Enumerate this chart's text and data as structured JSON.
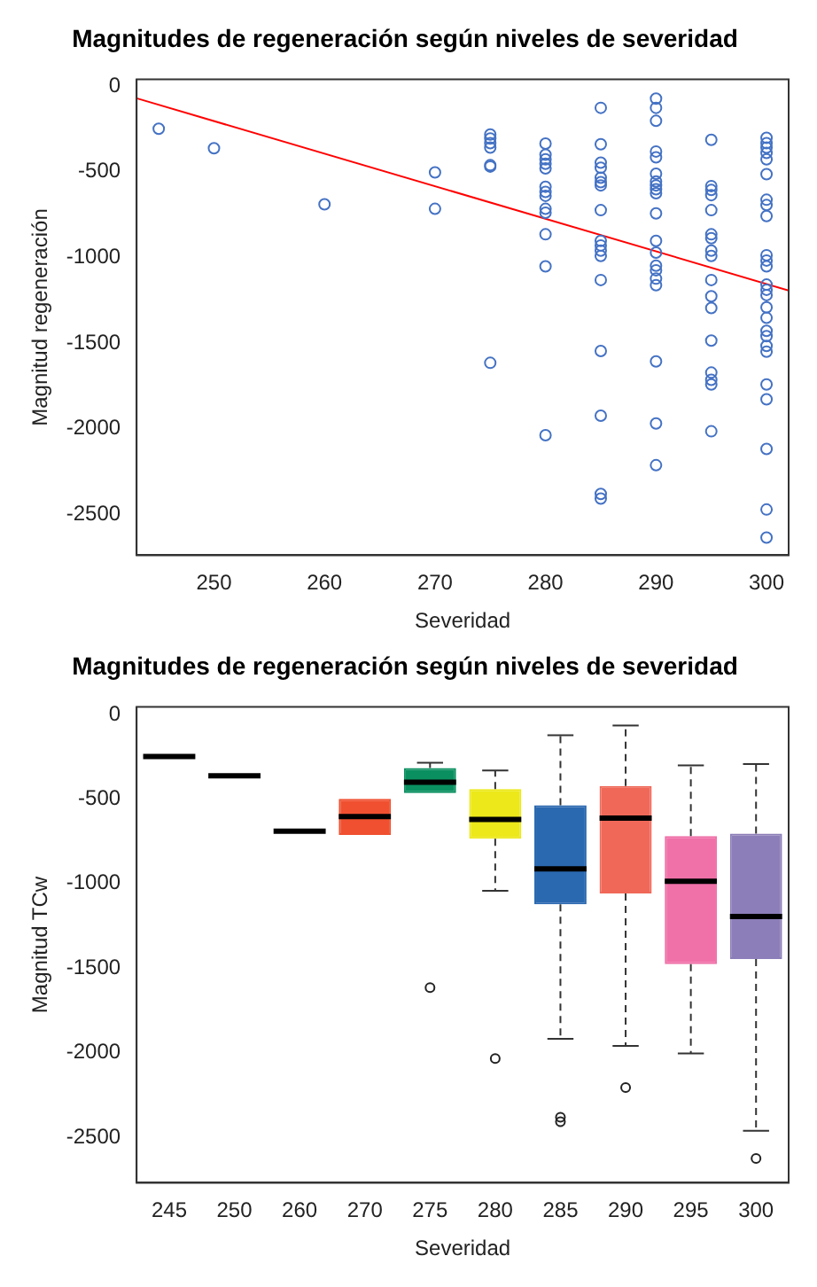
{
  "chart_data": [
    {
      "type": "scatter",
      "title": "Magnitudes de regeneración según niveles de severidad",
      "xlabel": "Severidad",
      "ylabel": "Magnitud regeneración",
      "xlim": [
        243,
        302
      ],
      "xticks": [
        250,
        260,
        270,
        280,
        290,
        300
      ],
      "ylim": [
        -2740,
        40
      ],
      "yticks": [
        0,
        -500,
        -1000,
        -1500,
        -2000,
        -2500
      ],
      "series": [
        {
          "color": "#4472c4",
          "marker": "circle",
          "x": [
            245,
            250,
            260,
            270,
            270,
            275,
            275,
            275,
            275,
            275,
            275,
            275,
            280,
            280,
            280,
            280,
            280,
            280,
            280,
            280,
            280,
            280,
            280,
            280,
            280,
            285,
            285,
            285,
            285,
            285,
            285,
            285,
            285,
            285,
            285,
            285,
            285,
            285,
            285,
            285,
            285,
            285,
            290,
            290,
            290,
            290,
            290,
            290,
            290,
            290,
            290,
            290,
            290,
            290,
            290,
            290,
            290,
            290,
            290,
            290,
            290,
            290,
            295,
            295,
            295,
            295,
            295,
            295,
            295,
            295,
            295,
            295,
            295,
            295,
            295,
            295,
            295,
            295,
            295,
            300,
            300,
            300,
            300,
            300,
            300,
            300,
            300,
            300,
            300,
            300,
            300,
            300,
            300,
            300,
            300,
            300,
            300,
            300,
            300,
            300,
            300,
            300,
            300,
            300,
            300
          ],
          "values": [
            -248,
            -362,
            -690,
            -503,
            -716,
            -282,
            -305,
            -332,
            -358,
            -461,
            -469,
            -1616,
            -335,
            -400,
            -427,
            -453,
            -480,
            -587,
            -617,
            -640,
            -716,
            -739,
            -865,
            -1052,
            -2039,
            -126,
            -339,
            -446,
            -476,
            -534,
            -560,
            -579,
            -724,
            -903,
            -930,
            -960,
            -991,
            -1132,
            -1547,
            -1925,
            -2382,
            -2409,
            -72,
            -126,
            -202,
            -381,
            -415,
            -511,
            -556,
            -579,
            -602,
            -625,
            -743,
            -903,
            -972,
            -1048,
            -1075,
            -1124,
            -1162,
            -1608,
            -1970,
            -2214,
            -313,
            -583,
            -606,
            -636,
            -724,
            -865,
            -888,
            -960,
            -991,
            -1132,
            -1227,
            -1296,
            -1486,
            -1673,
            -1715,
            -1742,
            -2016,
            -301,
            -332,
            -358,
            -389,
            -427,
            -514,
            -663,
            -694,
            -758,
            -987,
            -1018,
            -1052,
            -1159,
            -1189,
            -1220,
            -1292,
            -1353,
            -1429,
            -1460,
            -1517,
            -1551,
            -1742,
            -1829,
            -2119,
            -2473,
            -2637
          ]
        },
        {
          "type": "line",
          "color": "#ff0000",
          "x": [
            243,
            302
          ],
          "values": [
            -70,
            -1193
          ]
        }
      ]
    },
    {
      "type": "box",
      "title": "Magnitudes de regeneración según niveles de severidad",
      "xlabel": "Severidad",
      "ylabel": "Magnitud TCw",
      "categories": [
        "245",
        "250",
        "260",
        "270",
        "275",
        "280",
        "285",
        "290",
        "295",
        "300"
      ],
      "ylim": [
        -2770,
        45
      ],
      "yticks": [
        0,
        -500,
        -1000,
        -1500,
        -2000,
        -2500
      ],
      "colors": [
        "#000000",
        "#000000",
        "#000000",
        "#f05030",
        "#0a9060",
        "#ece81a",
        "#2a68b0",
        "#f06858",
        "#f070a8",
        "#8c7eb8"
      ],
      "boxes": [
        {
          "low": -248,
          "q1": -248,
          "median": -248,
          "q3": -248,
          "high": -248
        },
        {
          "low": -362,
          "q1": -362,
          "median": -362,
          "q3": -362,
          "high": -362
        },
        {
          "low": -690,
          "q1": -690,
          "median": -690,
          "q3": -690,
          "high": -690
        },
        {
          "low": -712,
          "q1": -712,
          "median": -603,
          "q3": -498,
          "high": -498
        },
        {
          "low": -464,
          "q1": -464,
          "median": -400,
          "q3": -316,
          "high": -285,
          "outliers": [
            -1616
          ]
        },
        {
          "low": -1043,
          "q1": -734,
          "median": -620,
          "q3": -441,
          "high": -331,
          "outliers": [
            -2035
          ]
        },
        {
          "low": -1918,
          "q1": -1123,
          "median": -913,
          "q3": -537,
          "high": -122,
          "outliers": [
            -2382,
            -2409
          ]
        },
        {
          "low": -1960,
          "q1": -1058,
          "median": -613,
          "q3": -422,
          "high": -65,
          "outliers": [
            -2207
          ]
        },
        {
          "low": -2005,
          "q1": -1476,
          "median": -986,
          "q3": -719,
          "high": -301
        },
        {
          "low": -2462,
          "q1": -1446,
          "median": -1195,
          "q3": -704,
          "high": -293,
          "outliers": [
            -2626
          ]
        }
      ]
    }
  ]
}
